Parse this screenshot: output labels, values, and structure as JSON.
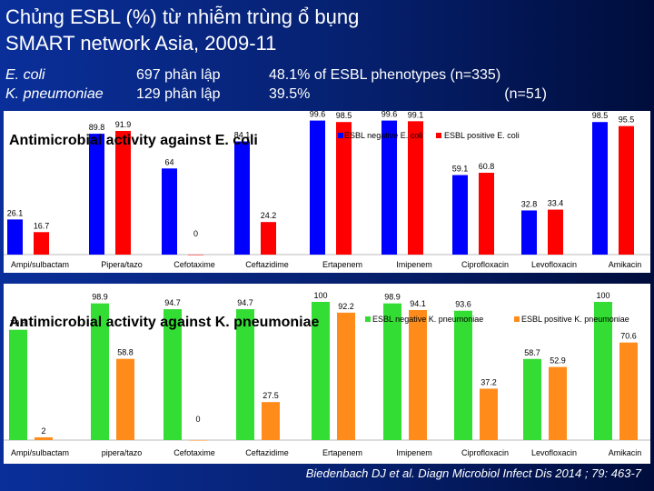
{
  "title": {
    "line1": "Chủng ESBL (%) từ nhiễm trùng ổ bụng",
    "line2": "SMART network Asia, 2009-11"
  },
  "info": {
    "organisms": [
      "E. coli",
      "K. pneumoniae"
    ],
    "isolates": [
      "697 phân lập",
      "129 phân lập"
    ],
    "phenotypes": [
      "48.1% of ESBL phenotypes (n=335)",
      "39.5%",
      "(n=51)"
    ]
  },
  "colors": {
    "background": "#0a2f9a",
    "esbl_negative_ecoli": "#0000ff",
    "esbl_positive_ecoli": "#ff0000",
    "esbl_negative_kpn": "#33dd33",
    "esbl_positive_kpn": "#ff8c1a"
  },
  "chart_data": [
    {
      "type": "bar",
      "title": "Antimicrobial activity against E. coli",
      "categories": [
        "Ampi/sulbactam",
        "Pipera/tazo",
        "Cefotaxime",
        "Ceftazidime",
        "Ertapenem",
        "Imipenem",
        "Ciprofloxacin",
        "Levofloxacin",
        "Amikacin"
      ],
      "series": [
        {
          "name": "ESBL negative E. coli",
          "color": "#0000ff",
          "values": [
            26.1,
            89.8,
            64,
            84.1,
            99.6,
            99.6,
            59.1,
            32.8,
            98.5
          ]
        },
        {
          "name": "ESBL positive E. coli",
          "color": "#ff0000",
          "values": [
            16.7,
            91.9,
            0,
            24.2,
            98.5,
            99.1,
            60.8,
            33.4,
            95.5
          ]
        }
      ],
      "data_labels": [
        [
          "26.1",
          "89.8",
          "64",
          "84.1",
          "99.6",
          "99.6",
          "59.1",
          "32.8",
          "98.5"
        ],
        [
          "16.7",
          "91.9",
          "0",
          "24.2",
          "98.5",
          "99.1",
          "60.8",
          "33.4",
          "95.5"
        ]
      ],
      "ylim": [
        0,
        100
      ],
      "legend": "top-right",
      "grid": false
    },
    {
      "type": "bar",
      "title": "Antimicrobial activity against K. pneumoniae",
      "categories": [
        "Ampi/sulbactam",
        "pipera/tazo",
        "Cefotaxime",
        "Ceftazidime",
        "Ertapenem",
        "Imipenem",
        "Ciprofloxacin",
        "Levofloxacin",
        "Amikacin"
      ],
      "series": [
        {
          "name": "ESBL negative K. pneumoniae",
          "color": "#33dd33",
          "values": [
            79.8,
            98.9,
            94.7,
            94.7,
            100,
            98.9,
            93.6,
            58.7,
            100
          ]
        },
        {
          "name": "ESBL positive K. pneumoniae",
          "color": "#ff8c1a",
          "values": [
            2,
            58.8,
            0,
            27.5,
            92.2,
            94.1,
            37.2,
            52.9,
            70.6
          ]
        }
      ],
      "data_labels": [
        [
          "79.8",
          "98.9",
          "94.7",
          "94.7",
          "100",
          "98.9",
          "93.6",
          "58.7",
          "100"
        ],
        [
          "2",
          "58.8",
          "0",
          "27.5",
          "92.2",
          "94.1",
          "37.2",
          "52.9",
          "70.6"
        ]
      ],
      "ylim": [
        0,
        100
      ],
      "legend": "top-right",
      "grid": false
    }
  ],
  "citation": "Biedenbach DJ et al. Diagn Microbiol Infect Dis 2014 ; 79: 463-7"
}
